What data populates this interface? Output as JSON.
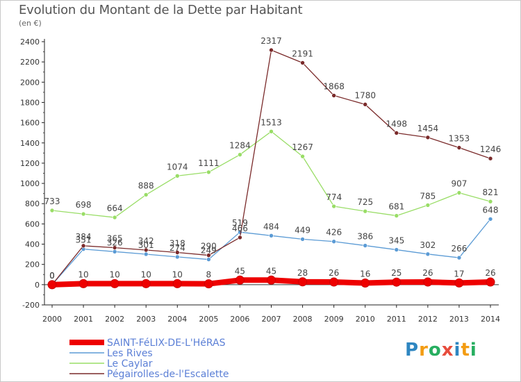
{
  "title": "Evolution du Montant de la Dette par Habitant",
  "subtitle": "(en €)",
  "logo": {
    "letters": [
      "P",
      "r",
      "o",
      "x",
      "i",
      "t",
      "i"
    ],
    "colors": [
      "#2e86c1",
      "#f39c12",
      "#27ae60",
      "#e74c3c",
      "#2e86c1",
      "#f39c12",
      "#27ae60"
    ]
  },
  "chart_data": {
    "type": "line",
    "x": [
      2000,
      2001,
      2002,
      2003,
      2004,
      2005,
      2006,
      2007,
      2008,
      2009,
      2010,
      2011,
      2012,
      2013,
      2014
    ],
    "ylim": [
      -200,
      2400
    ],
    "yticks": [
      -200,
      0,
      200,
      400,
      600,
      800,
      1000,
      1200,
      1400,
      1600,
      1800,
      2000,
      2200,
      2400
    ],
    "grid": false,
    "legend": "bottom-left",
    "series": [
      {
        "name": "SAINT-FéLIX-DE-L'HéRAS",
        "color": "#ee0000",
        "values": [
          0,
          10,
          10,
          10,
          10,
          8,
          45,
          45,
          28,
          26,
          16,
          25,
          26,
          17,
          26
        ],
        "labels": [
          "0",
          "10",
          "10",
          "10",
          "10",
          "8",
          "45",
          "45",
          "28",
          "26",
          "16",
          "25",
          "26",
          "17",
          "26"
        ]
      },
      {
        "name": "Les Rives",
        "color": "#5b9bd5",
        "values": [
          0,
          351,
          326,
          301,
          274,
          249,
          519,
          484,
          449,
          426,
          386,
          345,
          302,
          266,
          648
        ],
        "labels": [
          "0",
          "351",
          "326",
          "301",
          "274",
          "249",
          "519",
          "484",
          "449",
          "426",
          "386",
          "345",
          "302",
          "266",
          "648"
        ]
      },
      {
        "name": "Le Caylar",
        "color": "#99dd66",
        "values": [
          733,
          698,
          664,
          888,
          1074,
          1111,
          1284,
          1513,
          1267,
          774,
          725,
          681,
          785,
          907,
          821
        ],
        "labels": [
          "733",
          "698",
          "664",
          "888",
          "1074",
          "1111",
          "1284",
          "1513",
          "1267",
          "774",
          "725",
          "681",
          "785",
          "907",
          "821"
        ]
      },
      {
        "name": "Pégairolles-de-l'Escalette",
        "color": "#7a2a2a",
        "values": [
          0,
          384,
          365,
          342,
          318,
          290,
          466,
          2317,
          2191,
          1868,
          1780,
          1498,
          1454,
          1353,
          1246
        ],
        "labels": [
          "0",
          "384",
          "365",
          "342",
          "318",
          "290",
          "466",
          "2317",
          "2191",
          "1868",
          "1780",
          "1498",
          "1454",
          "1353",
          "1246"
        ]
      }
    ]
  }
}
